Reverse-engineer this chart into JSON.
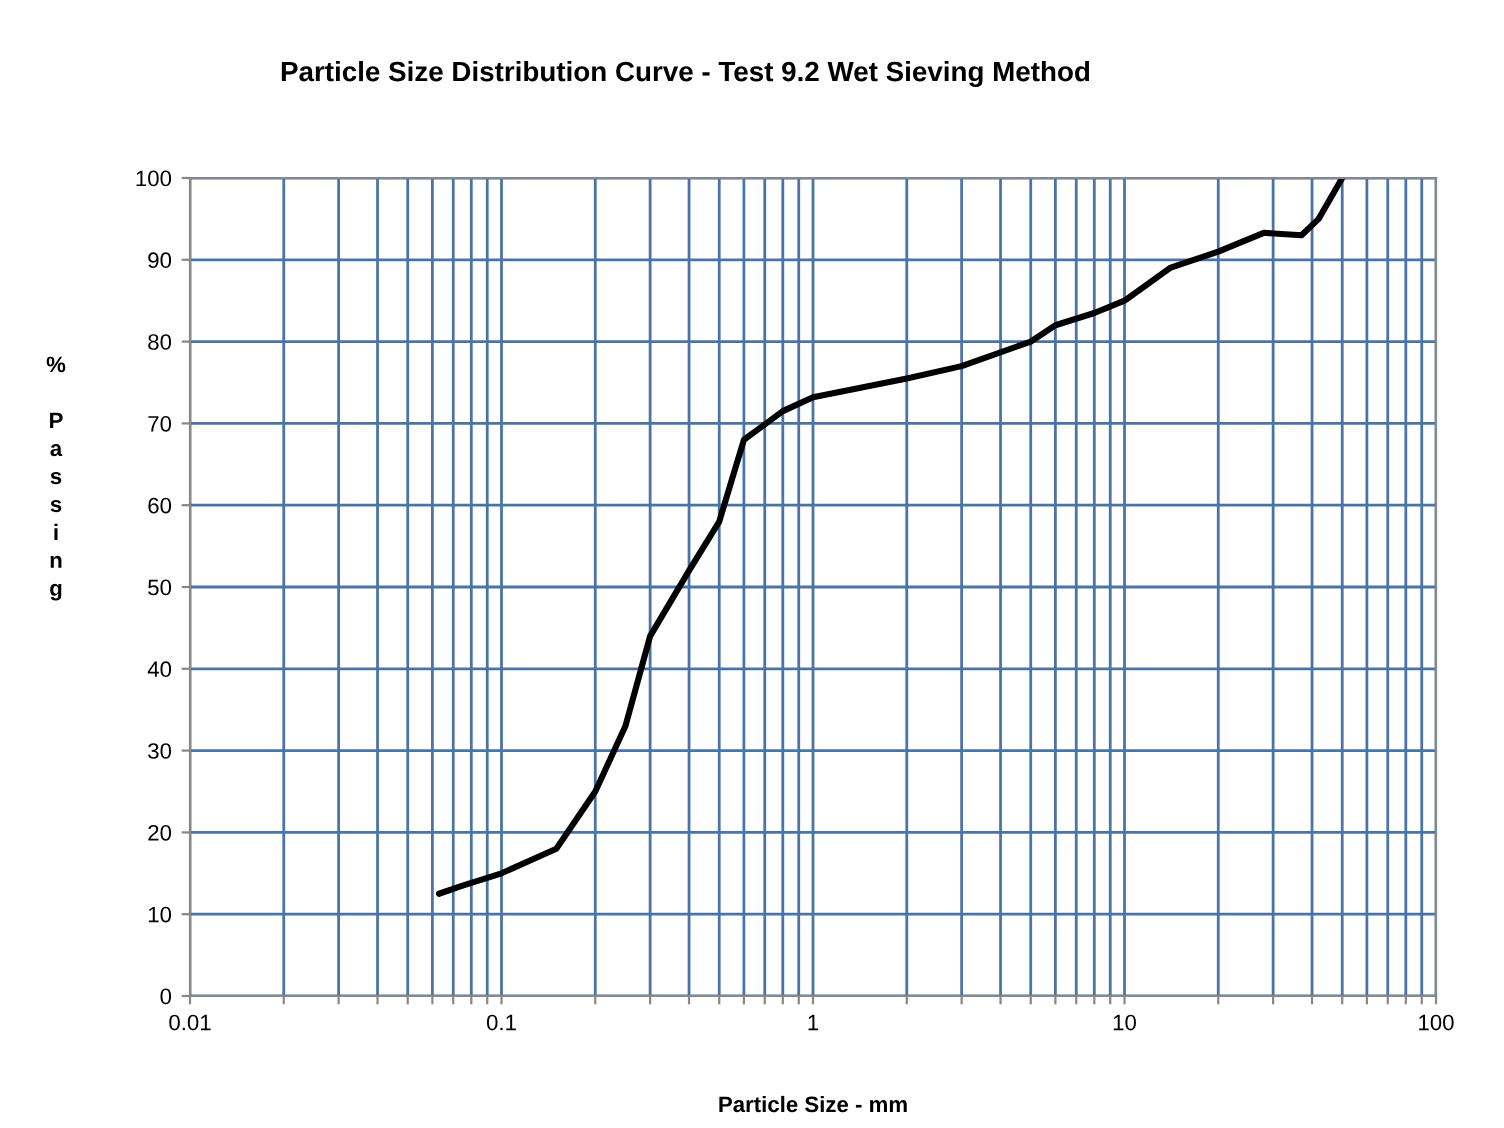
{
  "chart_data": {
    "type": "line",
    "title": "Particle Size Distribution Curve - Test 9.2 Wet Sieving Method",
    "xlabel": "Particle Size - mm",
    "ylabel": "% Passing",
    "log": "x",
    "grid": true,
    "marker": "none",
    "line_style": "solid",
    "xlim": [
      0.01,
      100
    ],
    "ylim": [
      0,
      100
    ],
    "xticks": [
      {
        "value": 0.01,
        "label": "0.01"
      },
      {
        "value": 0.02,
        "label": null
      },
      {
        "value": 0.03,
        "label": null
      },
      {
        "value": 0.04,
        "label": null
      },
      {
        "value": 0.05,
        "label": null
      },
      {
        "value": 0.06,
        "label": null
      },
      {
        "value": 0.07,
        "label": null
      },
      {
        "value": 0.08,
        "label": null
      },
      {
        "value": 0.09,
        "label": null
      },
      {
        "value": 0.1,
        "label": "0.1"
      },
      {
        "value": 0.2,
        "label": null
      },
      {
        "value": 0.3,
        "label": null
      },
      {
        "value": 0.4,
        "label": null
      },
      {
        "value": 0.5,
        "label": null
      },
      {
        "value": 0.6,
        "label": null
      },
      {
        "value": 0.7,
        "label": null
      },
      {
        "value": 0.8,
        "label": null
      },
      {
        "value": 0.9,
        "label": null
      },
      1,
      {
        "value": 2,
        "label": null
      },
      {
        "value": 3,
        "label": null
      },
      {
        "value": 4,
        "label": null
      },
      {
        "value": 5,
        "label": null
      },
      {
        "value": 6,
        "label": null
      },
      {
        "value": 7,
        "label": null
      },
      {
        "value": 8,
        "label": null
      },
      {
        "value": 9,
        "label": null
      },
      10,
      {
        "value": 20,
        "label": null
      },
      {
        "value": 30,
        "label": null
      },
      {
        "value": 40,
        "label": null
      },
      {
        "value": 50,
        "label": null
      },
      {
        "value": 60,
        "label": null
      },
      {
        "value": 70,
        "label": null
      },
      {
        "value": 80,
        "label": null
      },
      {
        "value": 90,
        "label": null
      },
      100
    ],
    "yticks": [
      0,
      10,
      20,
      30,
      40,
      50,
      60,
      70,
      80,
      90,
      100
    ],
    "series": [
      {
        "color": "#000000",
        "x": [
          0.063,
          0.075,
          0.1,
          0.15,
          0.2,
          0.25,
          0.3,
          0.4,
          0.5,
          0.6,
          0.8,
          1.0,
          2,
          3,
          5,
          6,
          8,
          10,
          14,
          20,
          28,
          37,
          42,
          50
        ],
        "values": [
          12.5,
          13.5,
          15,
          18,
          25,
          33,
          44,
          52,
          58,
          68,
          71.5,
          73.2,
          75.5,
          77,
          80,
          82,
          83.5,
          85,
          89,
          91,
          93.3,
          93,
          95,
          100
        ]
      }
    ]
  }
}
